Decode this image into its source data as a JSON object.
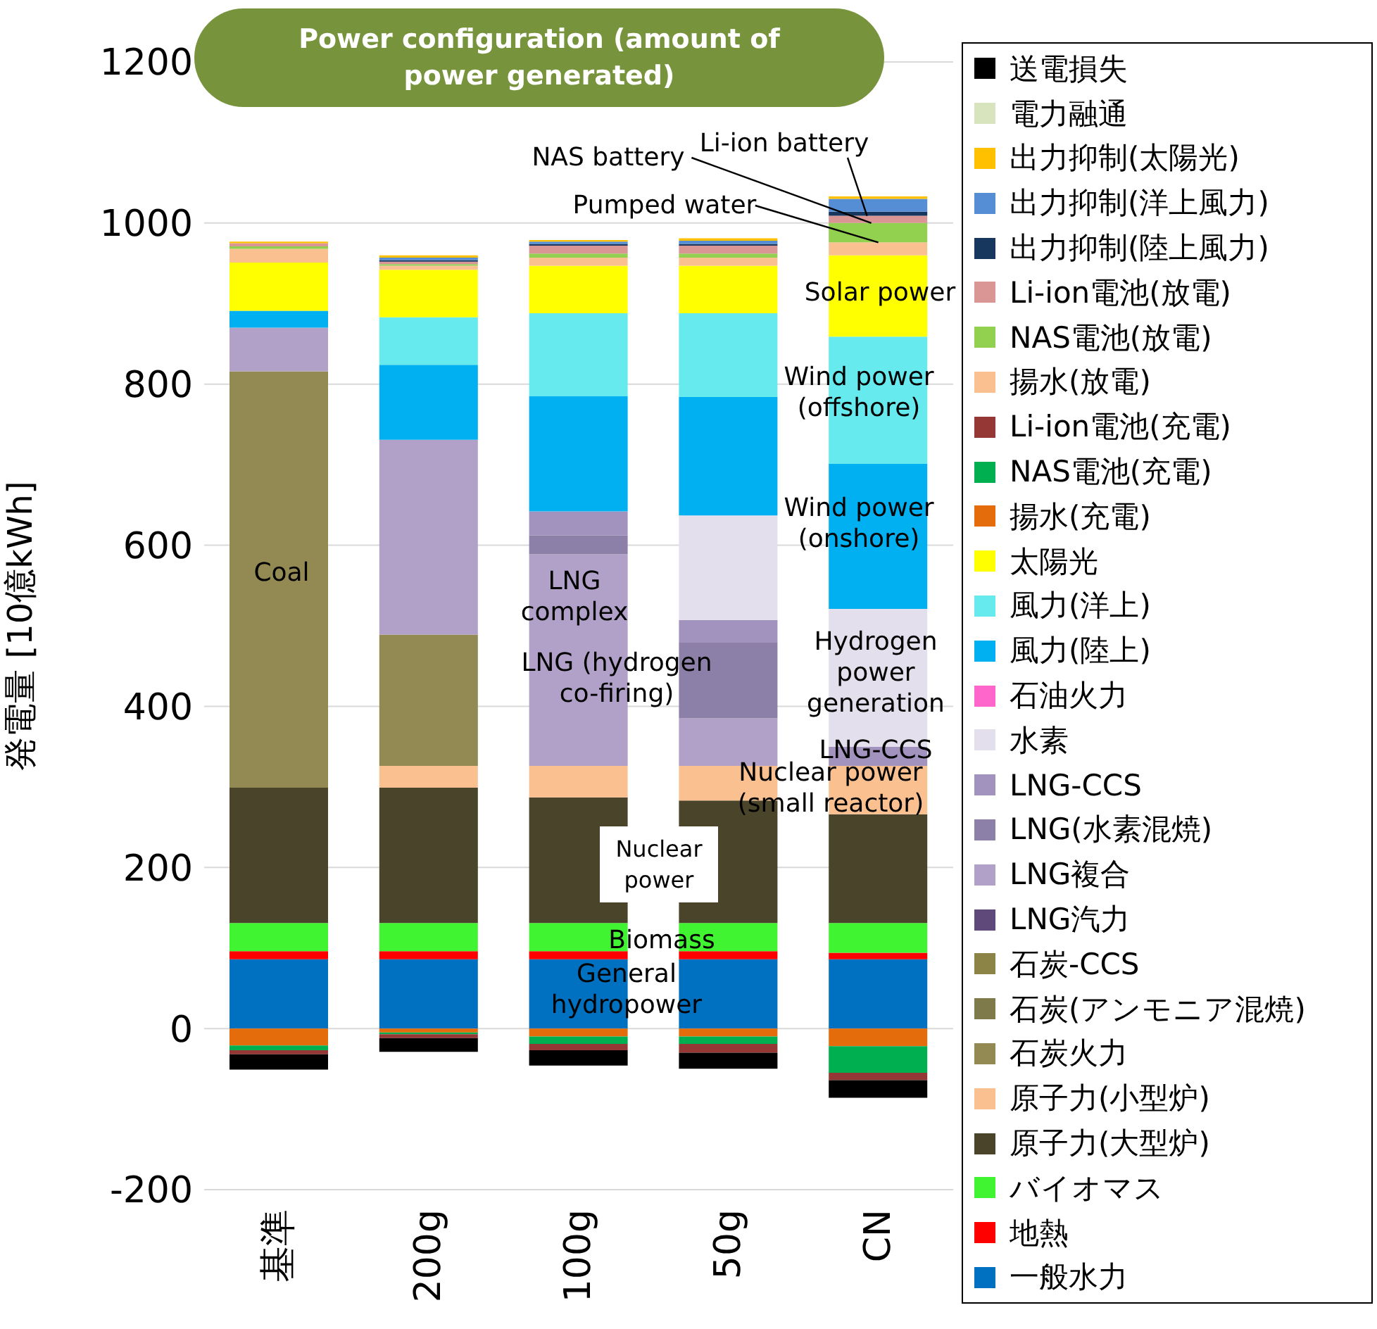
{
  "chart_data": {
    "type": "bar",
    "stacked": true,
    "title": "Power configuration (amount of power generated)",
    "ylabel": "発電量 [10億kWh]",
    "categories": [
      "基準",
      "200g",
      "100g",
      "50g",
      "CN"
    ],
    "ylim": [
      -200,
      1200
    ],
    "yticks": [
      -200,
      0,
      200,
      400,
      600,
      800,
      1000,
      1200
    ],
    "grid": "y",
    "legend": "right",
    "series": [
      {
        "name": "一般水力",
        "color": "#0070c0",
        "values": [
          86,
          86,
          86,
          86,
          86
        ]
      },
      {
        "name": "地熱",
        "color": "#ff0000",
        "values": [
          10,
          10,
          10,
          10,
          8
        ]
      },
      {
        "name": "バイオマス",
        "color": "#41f431",
        "values": [
          35,
          35,
          35,
          35,
          37
        ]
      },
      {
        "name": "原子力(大型炉)",
        "color": "#4a442a",
        "values": [
          168,
          168,
          156,
          152,
          135
        ]
      },
      {
        "name": "原子力(小型炉)",
        "color": "#fac090",
        "values": [
          0,
          27,
          39,
          43,
          60
        ]
      },
      {
        "name": "石炭火力",
        "color": "#938953",
        "values": [
          517,
          163,
          0,
          0,
          0
        ]
      },
      {
        "name": "石炭(アンモニア混焼)",
        "color": "#7f7a4a",
        "values": [
          0,
          0,
          0,
          0,
          0
        ]
      },
      {
        "name": "石炭-CCS",
        "color": "#8c8446",
        "values": [
          0,
          0,
          0,
          0,
          0
        ]
      },
      {
        "name": "LNG汽力",
        "color": "#5f497a",
        "values": [
          0,
          0,
          0,
          0,
          0
        ]
      },
      {
        "name": "LNG複合",
        "color": "#b1a0c7",
        "values": [
          54,
          242,
          263,
          59,
          0
        ]
      },
      {
        "name": "LNG(水素混焼)",
        "color": "#8d80a8",
        "values": [
          0,
          0,
          23,
          94,
          0
        ]
      },
      {
        "name": "LNG-CCS",
        "color": "#a193bd",
        "values": [
          0,
          0,
          30,
          28,
          24
        ]
      },
      {
        "name": "水素",
        "color": "#e4dfec",
        "values": [
          0,
          0,
          0,
          130,
          171
        ]
      },
      {
        "name": "石油火力",
        "color": "#ff66cc",
        "values": [
          0,
          0,
          0,
          0,
          0
        ]
      },
      {
        "name": "風力(陸上)",
        "color": "#00b0f0",
        "values": [
          21,
          93,
          143,
          147,
          180
        ]
      },
      {
        "name": "風力(洋上)",
        "color": "#66eaee",
        "values": [
          0,
          59,
          103,
          104,
          158
        ]
      },
      {
        "name": "太陽光",
        "color": "#ffff00",
        "values": [
          60,
          59,
          59,
          59,
          101
        ]
      },
      {
        "name": "揚水(充電)",
        "color": "#e46c0a",
        "values": [
          -21,
          -5,
          -10,
          -10,
          -22
        ]
      },
      {
        "name": "NAS電池(充電)",
        "color": "#00b050",
        "values": [
          -6,
          -2,
          -9,
          -9,
          -33
        ]
      },
      {
        "name": "Li-ion電池(充電)",
        "color": "#953735",
        "values": [
          -5,
          -5,
          -8,
          -11,
          -9
        ]
      },
      {
        "name": "揚水(放電)",
        "color": "#fac090",
        "values": [
          17,
          5,
          10,
          10,
          16
        ]
      },
      {
        "name": "NAS電池(放電)",
        "color": "#92d050",
        "values": [
          3,
          2,
          5,
          5,
          24
        ]
      },
      {
        "name": "Li-ion電池(放電)",
        "color": "#da9694",
        "values": [
          4,
          3,
          10,
          10,
          9
        ]
      },
      {
        "name": "出力抑制(陸上風力)",
        "color": "#17375e",
        "values": [
          0,
          2,
          2,
          2,
          5
        ]
      },
      {
        "name": "出力抑制(洋上風力)",
        "color": "#558ed5",
        "values": [
          0,
          3,
          3,
          4,
          16
        ]
      },
      {
        "name": "出力抑制(太陽光)",
        "color": "#ffc000",
        "values": [
          2,
          3,
          2,
          3,
          3
        ]
      },
      {
        "name": "電力融通",
        "color": "#d7e4bd",
        "values": [
          0,
          0,
          0,
          0,
          0
        ]
      },
      {
        "name": "送電損失",
        "color": "#000000",
        "values": [
          -19,
          -17,
          -19,
          -20,
          -22
        ]
      }
    ],
    "annotations": [
      "Coal",
      "LNG complex",
      "LNG (hydrogen co-firing)",
      "Hydrogen power generation",
      "LNG-CCS",
      "Nuclear power (small reactor)",
      "Nuclear power",
      "Biomass",
      "General hydropower",
      "Solar power",
      "Wind power (offshore)",
      "Wind power (onshore)",
      {
        "text": "Pumped water",
        "x": "CN",
        "y": 976
      },
      {
        "text": "NAS battery",
        "x": "CN",
        "y": 1000
      },
      {
        "text": "Li-ion battery",
        "x": "CN",
        "y": 1009
      }
    ]
  }
}
